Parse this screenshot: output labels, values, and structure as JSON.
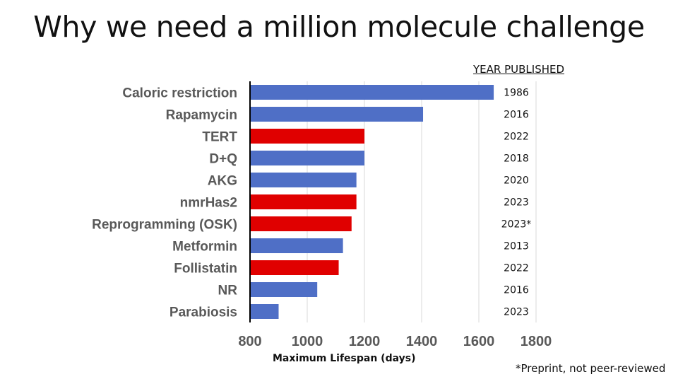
{
  "title": "Why we need a million molecule challenge",
  "year_header": "YEAR PUBLISHED",
  "footnote": "*Preprint, not peer-reviewed",
  "colors": {
    "blue": "#4f6fc6",
    "red": "#e00000",
    "grid": "#d9d9d9",
    "axis": "#000000"
  },
  "chart_data": {
    "type": "bar",
    "orientation": "horizontal",
    "xlabel": "Maximum Lifespan (days)",
    "xlim": [
      800,
      1800
    ],
    "xticks": [
      800,
      1000,
      1200,
      1400,
      1600,
      1800
    ],
    "grid": true,
    "categories": [
      "Caloric restriction",
      "Rapamycin",
      "TERT",
      "D+Q",
      "AKG",
      "nmrHas2",
      "Reprogramming (OSK)",
      "Metformin",
      "Follistatin",
      "NR",
      "Parabiosis"
    ],
    "values": [
      1652,
      1405,
      1200,
      1200,
      1172,
      1172,
      1155,
      1125,
      1110,
      1035,
      900
    ],
    "bar_colors": [
      "blue",
      "blue",
      "red",
      "blue",
      "blue",
      "red",
      "red",
      "blue",
      "red",
      "blue",
      "blue"
    ],
    "years": [
      "1986",
      "2016",
      "2022",
      "2018",
      "2020",
      "2023",
      "2023*",
      "2013",
      "2022",
      "2016",
      "2023"
    ]
  }
}
